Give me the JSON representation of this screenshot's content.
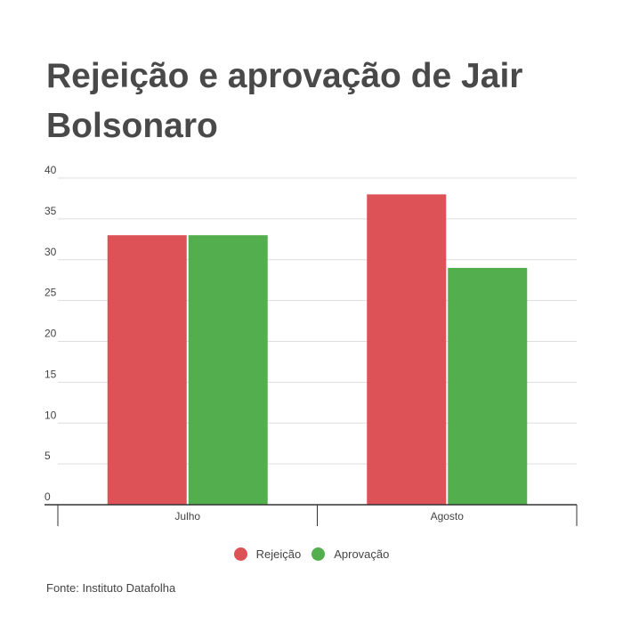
{
  "title": "Rejeição e aprovação de Jair Bolsonaro",
  "source": "Fonte: Instituto Datafolha",
  "colors": {
    "rejeicao": "#dd5257",
    "aprovacao": "#53ae4d",
    "grid": "#dddddd",
    "axis": "#333333"
  },
  "legend": [
    {
      "label": "Rejeição",
      "color": "#dd5257"
    },
    {
      "label": "Aprovação",
      "color": "#53ae4d"
    }
  ],
  "chart_data": {
    "type": "bar",
    "categories": [
      "Julho",
      "Agosto"
    ],
    "series": [
      {
        "name": "Rejeição",
        "values": [
          33,
          38
        ]
      },
      {
        "name": "Aprovação",
        "values": [
          33,
          29
        ]
      }
    ],
    "ylim": [
      0,
      40
    ],
    "yticks": [
      0,
      5,
      10,
      15,
      20,
      25,
      30,
      35,
      40
    ],
    "grid": true,
    "legend_position": "bottom"
  }
}
